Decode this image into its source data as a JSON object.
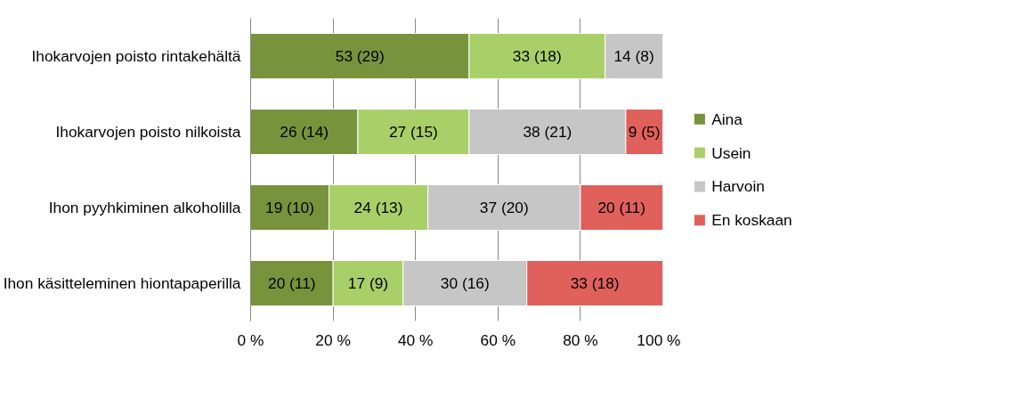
{
  "chart_data": {
    "type": "bar",
    "orientation": "horizontal",
    "stacked": true,
    "categories": [
      "Ihokarvojen poisto rintakehältä",
      "Ihokarvojen poisto nilkoista",
      "Ihon pyyhkiminen alkoholilla",
      "Ihon käsitteleminen hiontapaperilla"
    ],
    "series": [
      {
        "name": "Aina",
        "color": "#77933c",
        "values": [
          53,
          26,
          19,
          20
        ],
        "value_labels": [
          "53 (29)",
          "26 (14)",
          "19 (10)",
          "20 (11)"
        ]
      },
      {
        "name": "Usein",
        "color": "#a9cf68",
        "values": [
          33,
          27,
          24,
          17
        ],
        "value_labels": [
          "33 (18)",
          "27 (15)",
          "24 (13)",
          "17 (9)"
        ]
      },
      {
        "name": "Harvoin",
        "color": "#c6c6c6",
        "values": [
          14,
          38,
          37,
          30
        ],
        "value_labels": [
          "14 (8)",
          "38 (21)",
          "37 (20)",
          "30 (16)"
        ]
      },
      {
        "name": "En koskaan",
        "color": "#e0605c",
        "values": [
          null,
          9,
          20,
          33
        ],
        "value_labels": [
          null,
          "9 (5)",
          "20 (11)",
          "33 (18)"
        ]
      }
    ],
    "xlim": [
      0,
      100
    ],
    "xticks": [
      {
        "value": 0,
        "label": "0 %"
      },
      {
        "value": 20,
        "label": "20 %"
      },
      {
        "value": 40,
        "label": "40 %"
      },
      {
        "value": 60,
        "label": "60 %"
      },
      {
        "value": 80,
        "label": "80 %"
      },
      {
        "value": 100,
        "label": "100 %"
      }
    ],
    "grid": "x",
    "legend": "right"
  }
}
